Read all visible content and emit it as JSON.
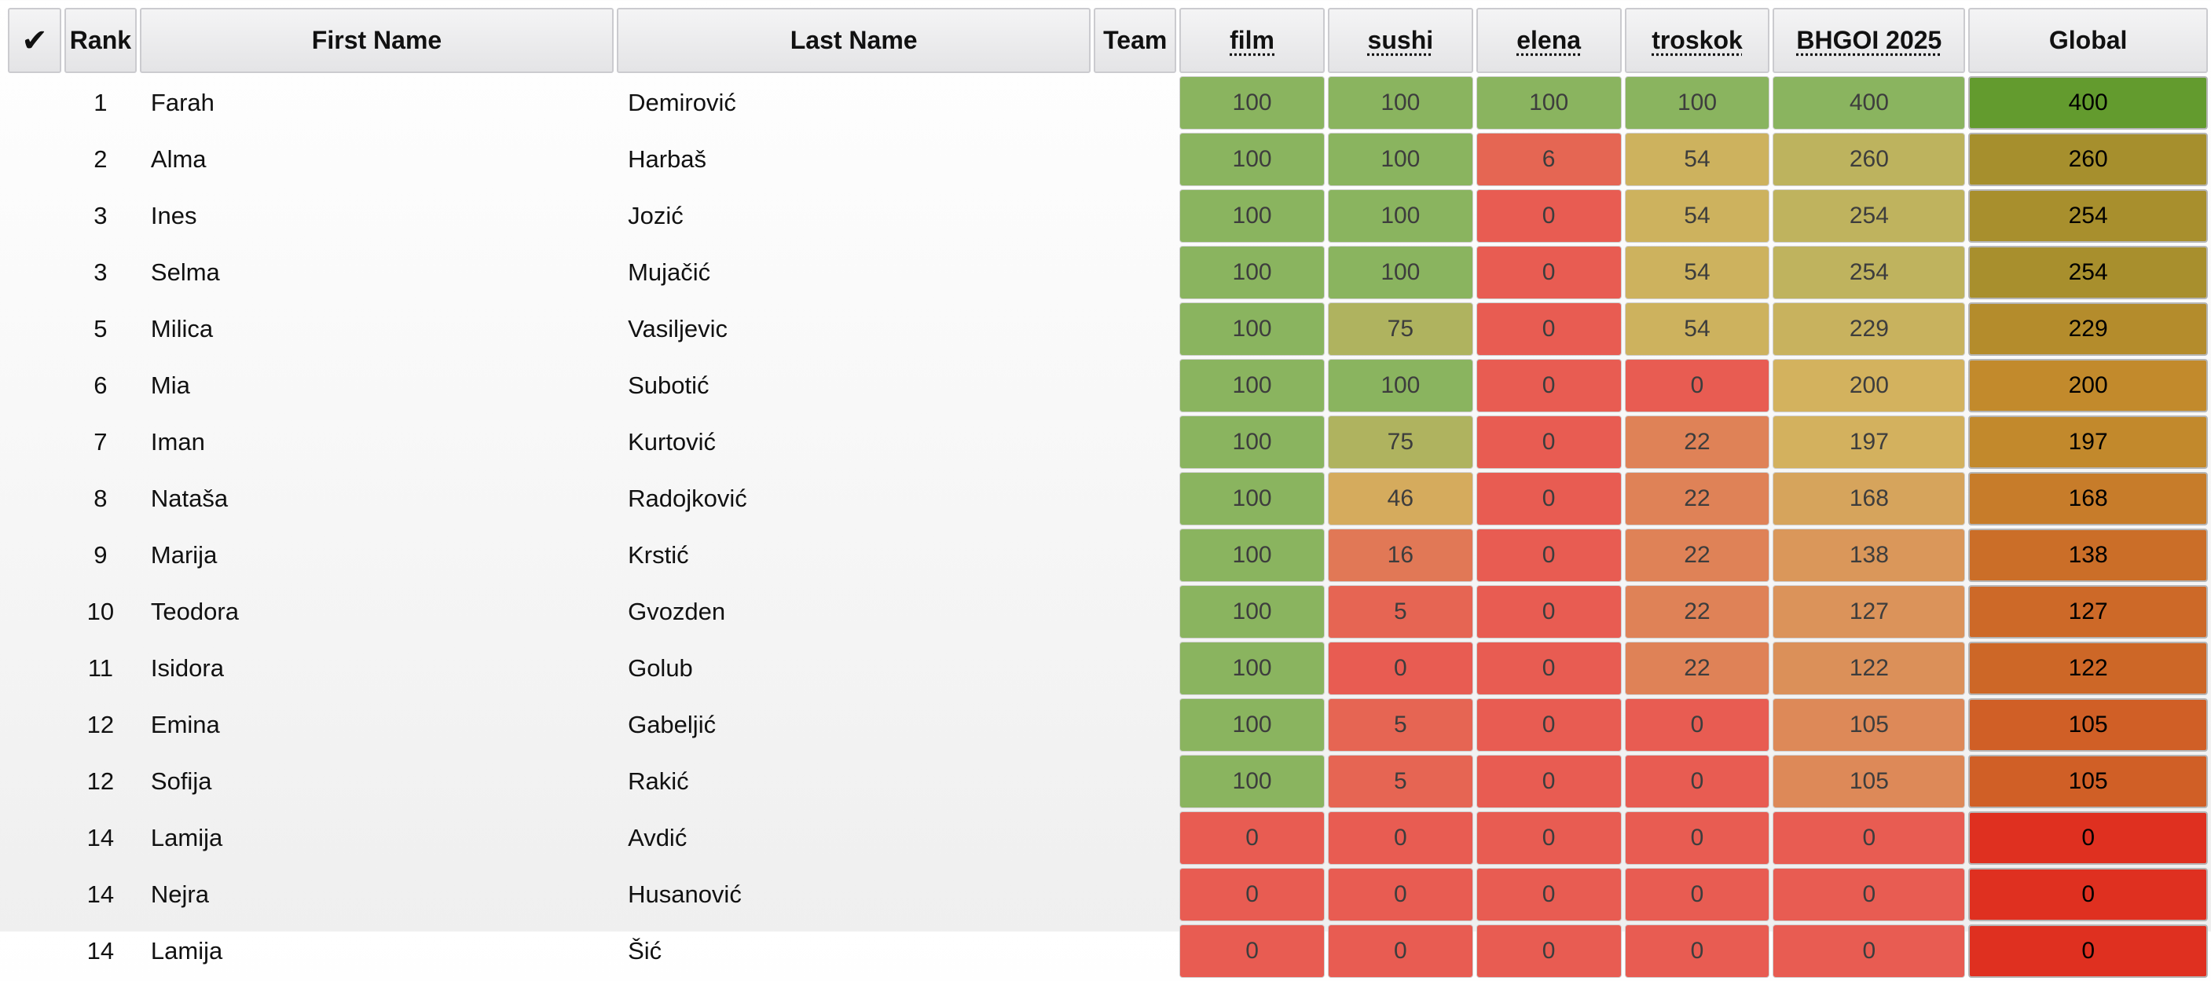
{
  "headers": {
    "check": "✔",
    "rank": "Rank",
    "first_name": "First Name",
    "last_name": "Last Name",
    "team": "Team",
    "tasks": [
      "film",
      "sushi",
      "elena",
      "troskok",
      "BHGOI 2025"
    ],
    "global": "Global"
  },
  "score_max": {
    "task": 100,
    "contest": 400,
    "global": 400
  },
  "rows": [
    {
      "rank": "1",
      "first": "Farah",
      "last": "Demirović",
      "team": "",
      "scores": [
        100,
        100,
        100,
        100,
        400
      ],
      "global": 400
    },
    {
      "rank": "2",
      "first": "Alma",
      "last": "Harbaš",
      "team": "",
      "scores": [
        100,
        100,
        6,
        54,
        260
      ],
      "global": 260
    },
    {
      "rank": "3",
      "first": "Ines",
      "last": "Jozić",
      "team": "",
      "scores": [
        100,
        100,
        0,
        54,
        254
      ],
      "global": 254
    },
    {
      "rank": "3",
      "first": "Selma",
      "last": "Mujačić",
      "team": "",
      "scores": [
        100,
        100,
        0,
        54,
        254
      ],
      "global": 254
    },
    {
      "rank": "5",
      "first": "Milica",
      "last": "Vasiljevic",
      "team": "",
      "scores": [
        100,
        75,
        0,
        54,
        229
      ],
      "global": 229
    },
    {
      "rank": "6",
      "first": "Mia",
      "last": "Subotić",
      "team": "",
      "scores": [
        100,
        100,
        0,
        0,
        200
      ],
      "global": 200
    },
    {
      "rank": "7",
      "first": "Iman",
      "last": "Kurtović",
      "team": "",
      "scores": [
        100,
        75,
        0,
        22,
        197
      ],
      "global": 197
    },
    {
      "rank": "8",
      "first": "Nataša",
      "last": "Radojković",
      "team": "",
      "scores": [
        100,
        46,
        0,
        22,
        168
      ],
      "global": 168
    },
    {
      "rank": "9",
      "first": "Marija",
      "last": "Krstić",
      "team": "",
      "scores": [
        100,
        16,
        0,
        22,
        138
      ],
      "global": 138
    },
    {
      "rank": "10",
      "first": "Teodora",
      "last": "Gvozden",
      "team": "",
      "scores": [
        100,
        5,
        0,
        22,
        127
      ],
      "global": 127
    },
    {
      "rank": "11",
      "first": "Isidora",
      "last": "Golub",
      "team": "",
      "scores": [
        100,
        0,
        0,
        22,
        122
      ],
      "global": 122
    },
    {
      "rank": "12",
      "first": "Emina",
      "last": "Gabeljić",
      "team": "",
      "scores": [
        100,
        5,
        0,
        0,
        105
      ],
      "global": 105
    },
    {
      "rank": "12",
      "first": "Sofija",
      "last": "Rakić",
      "team": "",
      "scores": [
        100,
        5,
        0,
        0,
        105
      ],
      "global": 105
    },
    {
      "rank": "14",
      "first": "Lamija",
      "last": "Avdić",
      "team": "",
      "scores": [
        0,
        0,
        0,
        0,
        0
      ],
      "global": 0
    },
    {
      "rank": "14",
      "first": "Nejra",
      "last": "Husanović",
      "team": "",
      "scores": [
        0,
        0,
        0,
        0,
        0
      ],
      "global": 0
    },
    {
      "rank": "14",
      "first": "Lamija",
      "last": "Šić",
      "team": "",
      "scores": [
        0,
        0,
        0,
        0,
        0
      ],
      "global": 0
    }
  ],
  "colors": {
    "score_zero": "#e85c52",
    "score_mid": "#d3b25e",
    "score_full": "#8ab45f",
    "global_zero": "#df3020",
    "global_mid": "#c28a2c",
    "global_full": "#639b2e"
  }
}
